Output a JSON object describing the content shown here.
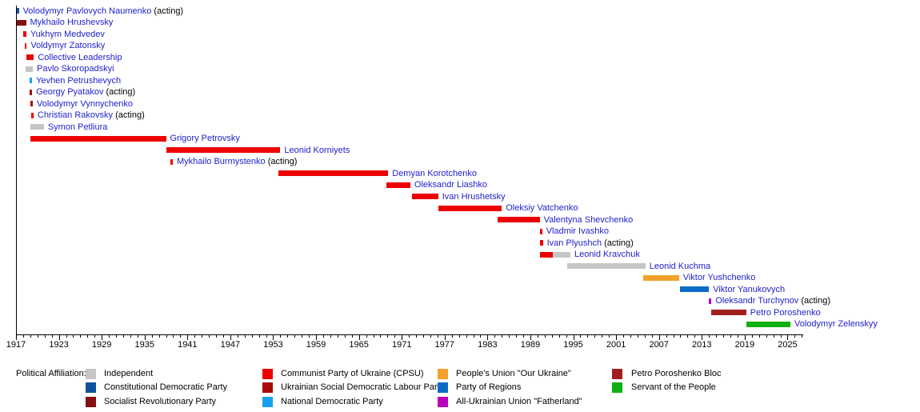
{
  "palette": {
    "independent": "#C6C6C6",
    "constitutional_democratic": "#11519E",
    "socialist_revolutionary": "#851111",
    "cpsu": "#EE0000",
    "usdlp": "#AA0A0A",
    "national_democratic": "#18A0F0",
    "our_ukraine": "#F2A12D",
    "party_of_regions": "#0B6BC8",
    "fatherland": "#BB00BB",
    "poroshenko_bloc": "#A02020",
    "servant_of_people": "#10B010",
    "name_text": "#2222CC",
    "plain_text": "#000000"
  },
  "chart_data": {
    "type": "timeline",
    "title": "",
    "x_axis": {
      "start_year": 1917,
      "end_year": 2027,
      "major_tick_step": 6,
      "tick_labels": [
        "1917",
        "1923",
        "1929",
        "1935",
        "1941",
        "1947",
        "1953",
        "1959",
        "1965",
        "1971",
        "1977",
        "1983",
        "1989",
        "1995",
        "2001",
        "2007",
        "2013",
        "2019",
        "2025"
      ]
    },
    "rows": [
      {
        "name": "Volodymyr Pavlovych Naumenko",
        "suffix": " (acting)",
        "segments": [
          {
            "party": "constitutional_democratic",
            "from": 1917.1,
            "to": 1917.4
          }
        ]
      },
      {
        "name": "Mykhailo Hrushevsky",
        "suffix": "",
        "segments": [
          {
            "party": "socialist_revolutionary",
            "from": 1917.0,
            "to": 1918.4
          }
        ]
      },
      {
        "name": "Yukhym Medvedev",
        "suffix": "",
        "segments": [
          {
            "party": "cpsu",
            "from": 1918.05,
            "to": 1918.45
          }
        ]
      },
      {
        "name": "Voldymyr Zatonsky",
        "suffix": "",
        "segments": [
          {
            "party": "cpsu",
            "from": 1918.25,
            "to": 1918.5
          }
        ]
      },
      {
        "name": "Collective Leadership",
        "suffix": "",
        "segments": [
          {
            "party": "cpsu",
            "from": 1918.5,
            "to": 1919.5
          }
        ]
      },
      {
        "name": "Pavlo Skoropadskyi",
        "suffix": "",
        "segments": [
          {
            "party": "independent",
            "from": 1918.35,
            "to": 1919.35
          }
        ]
      },
      {
        "name": "Yevhen Petrushevych",
        "suffix": "",
        "segments": [
          {
            "party": "national_democratic",
            "from": 1918.85,
            "to": 1919.25
          }
        ]
      },
      {
        "name": "Georgy Pyatakov",
        "suffix": " (acting)",
        "segments": [
          {
            "party": "usdlp",
            "from": 1918.9,
            "to": 1919.25
          }
        ]
      },
      {
        "name": "Volodymyr Vynnychenko",
        "suffix": "",
        "segments": [
          {
            "party": "usdlp",
            "from": 1919.0,
            "to": 1919.35
          }
        ]
      },
      {
        "name": "Christian Rakovsky",
        "suffix": " (acting)",
        "segments": [
          {
            "party": "cpsu",
            "from": 1919.1,
            "to": 1919.45
          }
        ]
      },
      {
        "name": "Symon Petliura",
        "suffix": "",
        "segments": [
          {
            "party": "independent",
            "from": 1919.0,
            "to": 1920.9
          }
        ]
      },
      {
        "name": "Grigory Petrovsky",
        "suffix": "",
        "segments": [
          {
            "party": "cpsu",
            "from": 1919.0,
            "to": 1938.0
          }
        ]
      },
      {
        "name": "Leonid Korniyets",
        "suffix": "",
        "segments": [
          {
            "party": "cpsu",
            "from": 1938.0,
            "to": 1954.0
          }
        ]
      },
      {
        "name": "Mykhailo Burmystenko",
        "suffix": " (acting)",
        "segments": [
          {
            "party": "cpsu",
            "from": 1938.6,
            "to": 1938.95
          }
        ]
      },
      {
        "name": "Demyan Korotchenko",
        "suffix": "",
        "segments": [
          {
            "party": "cpsu",
            "from": 1953.7,
            "to": 1969.1
          }
        ]
      },
      {
        "name": "Oleksandr Liashko",
        "suffix": "",
        "segments": [
          {
            "party": "cpsu",
            "from": 1968.9,
            "to": 1972.2
          }
        ]
      },
      {
        "name": "Ivan Hrushetsky",
        "suffix": "",
        "segments": [
          {
            "party": "cpsu",
            "from": 1972.4,
            "to": 1976.1
          }
        ]
      },
      {
        "name": "Oleksiy Vatchenko",
        "suffix": "",
        "segments": [
          {
            "party": "cpsu",
            "from": 1976.1,
            "to": 1985.0
          }
        ]
      },
      {
        "name": "Valentyna Shevchenko",
        "suffix": "",
        "segments": [
          {
            "party": "cpsu",
            "from": 1984.4,
            "to": 1990.3
          }
        ]
      },
      {
        "name": "Vladmir Ivashko",
        "suffix": "",
        "segments": [
          {
            "party": "cpsu",
            "from": 1990.3,
            "to": 1990.65
          }
        ]
      },
      {
        "name": "Ivan Plyushch",
        "suffix": " (acting)",
        "segments": [
          {
            "party": "cpsu",
            "from": 1990.4,
            "to": 1990.75
          }
        ]
      },
      {
        "name": "Leonid Kravchuk",
        "suffix": "",
        "segments": [
          {
            "party": "cpsu",
            "from": 1990.3,
            "to": 1992.1
          },
          {
            "party": "independent",
            "from": 1992.1,
            "to": 1994.6
          }
        ]
      },
      {
        "name": "Leonid Kuchma",
        "suffix": "",
        "segments": [
          {
            "party": "independent",
            "from": 1994.1,
            "to": 2005.1
          }
        ]
      },
      {
        "name": "Viktor Yushchenko",
        "suffix": "",
        "segments": [
          {
            "party": "our_ukraine",
            "from": 2004.8,
            "to": 2009.8
          }
        ]
      },
      {
        "name": "Viktor Yanukovych",
        "suffix": "",
        "segments": [
          {
            "party": "party_of_regions",
            "from": 2009.9,
            "to": 2014.0
          }
        ]
      },
      {
        "name": "Oleksandr Turchynov",
        "suffix": " (acting)",
        "segments": [
          {
            "party": "fatherland",
            "from": 2014.0,
            "to": 2014.35
          }
        ]
      },
      {
        "name": "Petro Poroshenko",
        "suffix": "",
        "segments": [
          {
            "party": "poroshenko_bloc",
            "from": 2014.35,
            "to": 2019.2
          }
        ]
      },
      {
        "name": "Volodymyr Zelenskyy",
        "suffix": "",
        "segments": [
          {
            "party": "servant_of_people",
            "from": 2019.2,
            "to": 2025.4
          }
        ]
      }
    ]
  },
  "legend": {
    "title": "Political Affiliation:",
    "columns": [
      {
        "items": [
          {
            "party": "independent",
            "label": "Independent"
          },
          {
            "party": "constitutional_democratic",
            "label": "Constitutional Democratic Party"
          },
          {
            "party": "socialist_revolutionary",
            "label": "Socialist Revolutionary Party"
          }
        ]
      },
      {
        "items": [
          {
            "party": "cpsu",
            "label": "Communist Party of Ukraine (CPSU)"
          },
          {
            "party": "usdlp",
            "label": "Ukrainian Social Democratic Labour Party"
          },
          {
            "party": "national_democratic",
            "label": "National Democratic Party"
          }
        ]
      },
      {
        "items": [
          {
            "party": "our_ukraine",
            "label": "People's Union \"Our Ukraine\""
          },
          {
            "party": "party_of_regions",
            "label": "Party of Regions"
          },
          {
            "party": "fatherland",
            "label": "All-Ukrainian Union \"Fatherland\""
          }
        ]
      },
      {
        "items": [
          {
            "party": "poroshenko_bloc",
            "label": "Petro Poroshenko Bloc"
          },
          {
            "party": "servant_of_people",
            "label": "Servant of the People"
          }
        ]
      }
    ]
  }
}
